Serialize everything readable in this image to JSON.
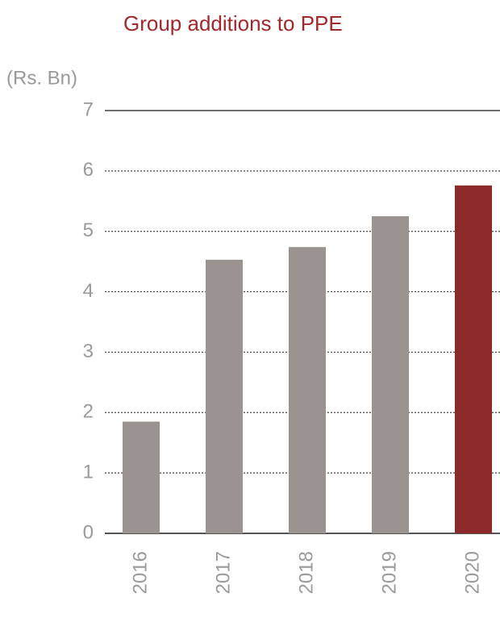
{
  "chart_data": {
    "type": "bar",
    "title": "Group additions to PPE",
    "y_label": "(Rs. Bn)",
    "categories": [
      "2016",
      "2017",
      "2018",
      "2019",
      "2020"
    ],
    "values": [
      1.85,
      4.53,
      4.74,
      5.25,
      5.76
    ],
    "colors": [
      "#9a9390",
      "#9a9390",
      "#9a9390",
      "#9a9390",
      "#8c2a2a"
    ],
    "ylim": [
      0,
      7
    ],
    "yticks": [
      0,
      1,
      2,
      3,
      4,
      5,
      6,
      7
    ],
    "grid": true
  }
}
